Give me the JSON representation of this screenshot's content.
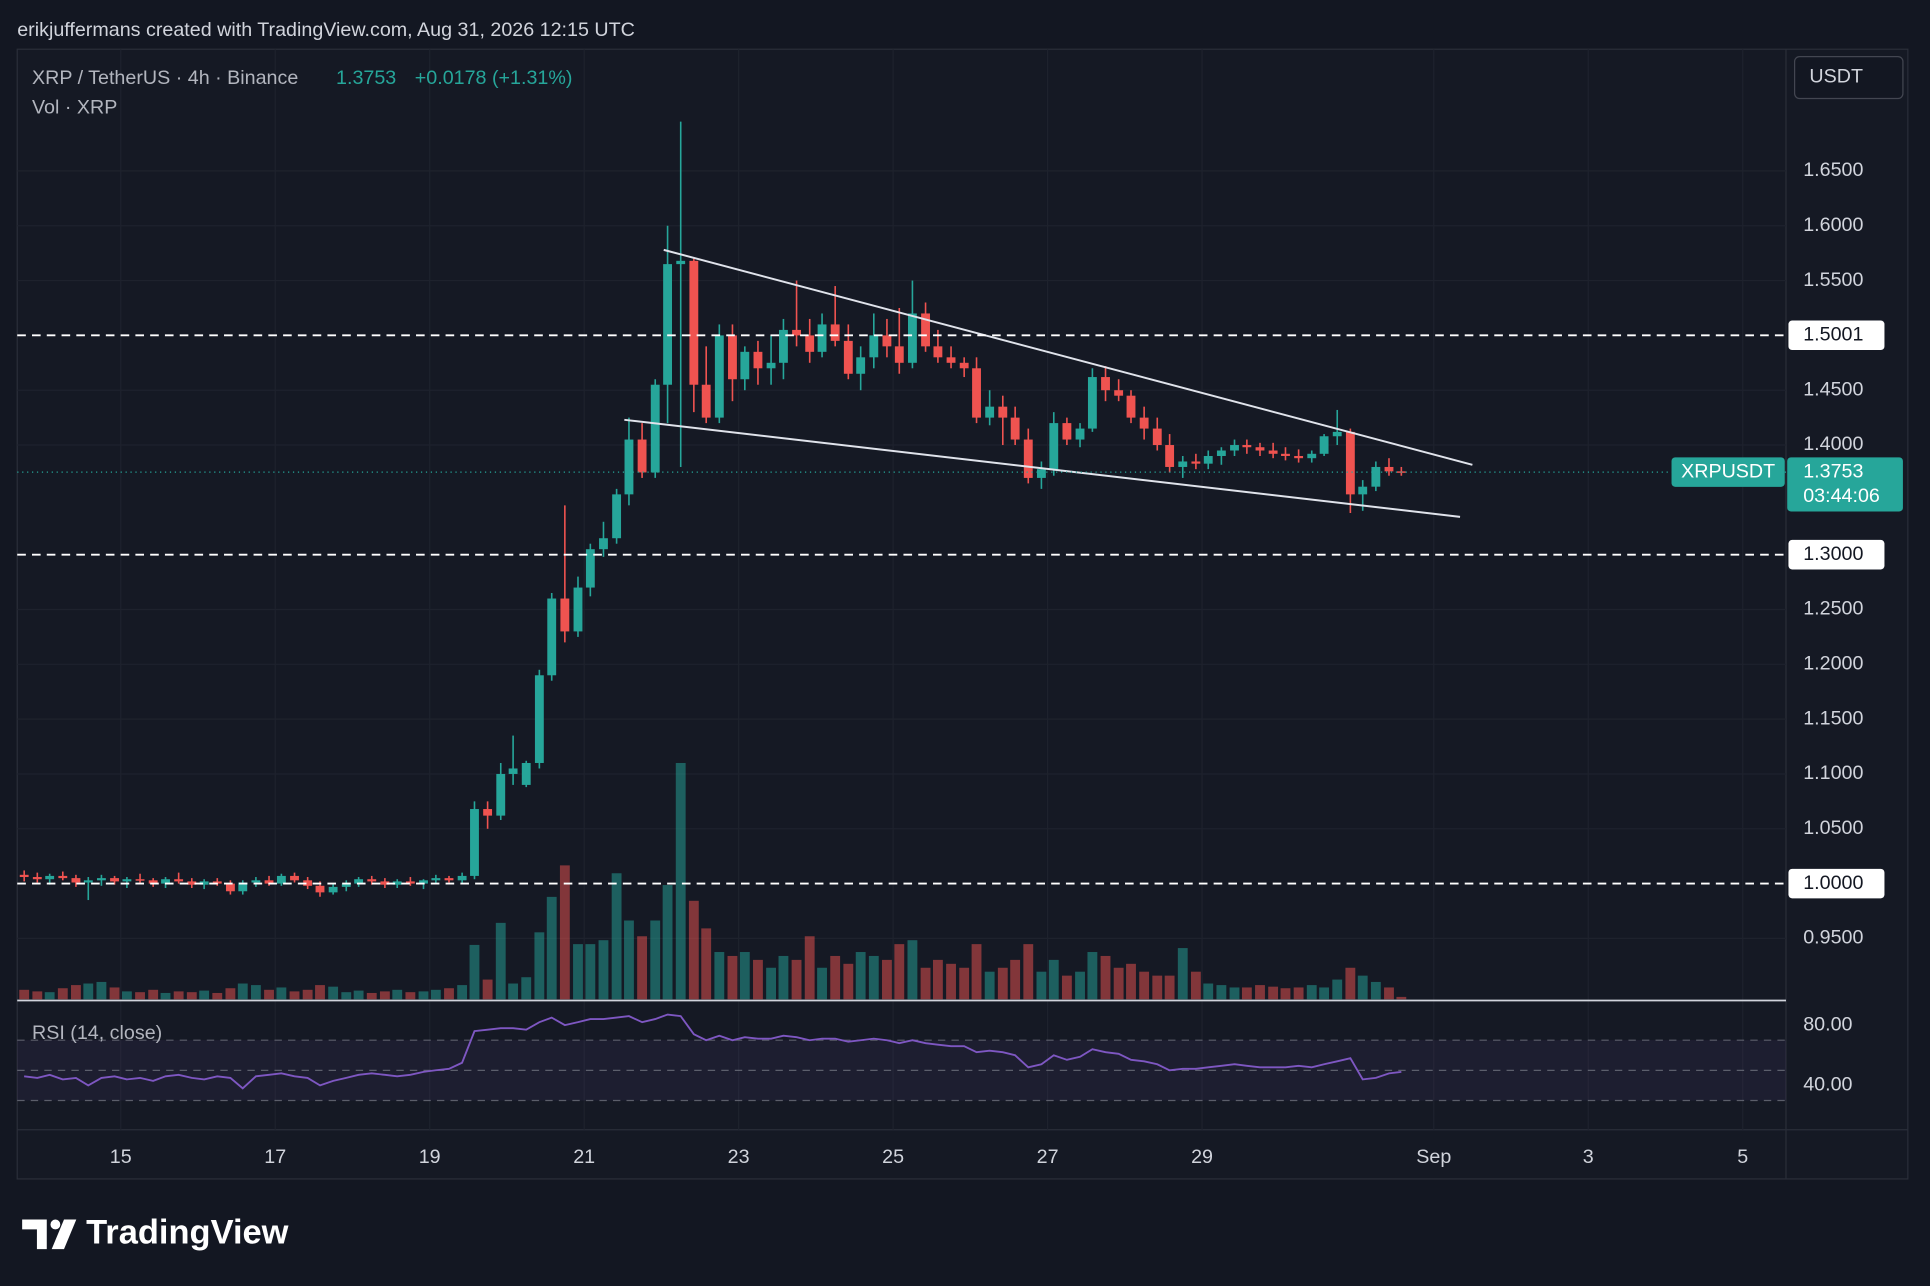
{
  "chart_data": {
    "type": "candlestick",
    "attribution": "erikjuffermans created with TradingView.com, Aug 31, 2026 12:15 UTC",
    "symbol": "XRP / TetherUS · 4h · Binance",
    "last": 1.3753,
    "change": "+0.0178 (+1.31%)",
    "volume_label": "Vol · XRP",
    "rsi_label": "RSI (14, close)",
    "currency": "USDT",
    "logo": "TradingView",
    "up_color": "#26a69a",
    "down_color": "#ef5350",
    "rsi_color": "#7e57c2",
    "grid": true,
    "xlim": [
      13.66,
      36.56
    ],
    "xticks": [
      15,
      17,
      19,
      21,
      23,
      25,
      27,
      29,
      {
        "value": 32,
        "label": "Sep"
      },
      {
        "value": 34,
        "label": "3"
      },
      {
        "value": 36,
        "label": "5"
      }
    ],
    "ylim": [
      0.8945,
      1.761
    ],
    "yticks": [
      {
        "value": 0.95,
        "label": "0.9500"
      },
      {
        "value": 1.05,
        "label": "1.0500"
      },
      {
        "value": 1.1,
        "label": "1.1000"
      },
      {
        "value": 1.15,
        "label": "1.1500"
      },
      {
        "value": 1.2,
        "label": "1.2000"
      },
      {
        "value": 1.25,
        "label": "1.2500"
      },
      {
        "value": 1.4,
        "label": "1.4000"
      },
      {
        "value": 1.45,
        "label": "1.4500"
      },
      {
        "value": 1.55,
        "label": "1.5500"
      },
      {
        "value": 1.6,
        "label": "1.6000"
      },
      {
        "value": 1.65,
        "label": "1.6500"
      }
    ],
    "rsi_lim": [
      10.6,
      94.7
    ],
    "rsi_ticks": [
      {
        "value": 80,
        "label": "80.00"
      },
      {
        "value": 40,
        "label": "40.00"
      }
    ],
    "rsi_bands": [
      70,
      50,
      30
    ],
    "levels": [
      1.5001,
      {
        "value": 1.3,
        "label": "1.3000"
      },
      {
        "value": 1,
        "label": "1.0000"
      }
    ],
    "price_marker": {
      "name": "XRPUSDT",
      "value": 1.3753,
      "countdown": "03:44:06"
    },
    "trendlines": [
      {
        "x": [
          22.03,
          32.5
        ],
        "y": [
          1.578,
          1.382
        ]
      },
      {
        "x": [
          21.52,
          32.34
        ],
        "y": [
          1.423,
          1.3345
        ]
      }
    ],
    "x": [
      13.75,
      13.92,
      14.08,
      14.25,
      14.42,
      14.58,
      14.75,
      14.92,
      15.08,
      15.25,
      15.42,
      15.58,
      15.75,
      15.92,
      16.08,
      16.25,
      16.42,
      16.58,
      16.75,
      16.92,
      17.08,
      17.25,
      17.42,
      17.58,
      17.75,
      17.92,
      18.08,
      18.25,
      18.42,
      18.58,
      18.75,
      18.92,
      19.08,
      19.25,
      19.42,
      19.58,
      19.75,
      19.92,
      20.08,
      20.25,
      20.42,
      20.58,
      20.75,
      20.92,
      21.08,
      21.25,
      21.42,
      21.58,
      21.75,
      21.92,
      22.08,
      22.25,
      22.42,
      22.58,
      22.75,
      22.92,
      23.08,
      23.25,
      23.42,
      23.58,
      23.75,
      23.92,
      24.08,
      24.25,
      24.42,
      24.58,
      24.75,
      24.92,
      25.08,
      25.25,
      25.42,
      25.58,
      25.75,
      25.92,
      26.08,
      26.25,
      26.42,
      26.58,
      26.75,
      26.92,
      27.08,
      27.25,
      27.42,
      27.58,
      27.75,
      27.92,
      28.08,
      28.25,
      28.42,
      28.58,
      28.75,
      28.92,
      29.08,
      29.25,
      29.42,
      29.58,
      29.75,
      29.92,
      30.08,
      30.25,
      30.42,
      30.58,
      30.75,
      30.92,
      31.08,
      31.25,
      31.42,
      31.58
    ],
    "ohlc": [
      [
        1.008,
        1.012,
        1.002,
        1.006
      ],
      [
        1.006,
        1.01,
        1.001,
        1.004
      ],
      [
        1.004,
        1.009,
        0.999,
        1.007
      ],
      [
        1.007,
        1.011,
        1.003,
        1.005
      ],
      [
        1.005,
        1.008,
        0.997,
        1.001
      ],
      [
        1.001,
        1.006,
        0.985,
        1.003
      ],
      [
        1.003,
        1.008,
        0.998,
        1.005
      ],
      [
        1.005,
        1.007,
        0.999,
        1.002
      ],
      [
        1.002,
        1.006,
        0.996,
        1.004
      ],
      [
        1.004,
        1.009,
        1.0,
        1.003
      ],
      [
        1.003,
        1.005,
        0.997,
        1.0
      ],
      [
        1.0,
        1.006,
        0.996,
        1.004
      ],
      [
        1.004,
        1.01,
        1.0,
        1.002
      ],
      [
        1.002,
        1.005,
        0.996,
        0.999
      ],
      [
        0.999,
        1.004,
        0.995,
        1.002
      ],
      [
        1.002,
        1.005,
        0.998,
        1.0
      ],
      [
        1.0,
        1.003,
        0.99,
        0.993
      ],
      [
        0.993,
        1.003,
        0.99,
        1.001
      ],
      [
        1.001,
        1.006,
        0.997,
        1.003
      ],
      [
        1.003,
        1.007,
        0.998,
        1.0
      ],
      [
        1.0,
        1.009,
        0.998,
        1.007
      ],
      [
        1.007,
        1.01,
        1.001,
        1.003
      ],
      [
        1.003,
        1.006,
        0.995,
        0.998
      ],
      [
        0.998,
        1.002,
        0.988,
        0.992
      ],
      [
        0.992,
        1.0,
        0.99,
        0.997
      ],
      [
        0.997,
        1.003,
        0.993,
        1.0
      ],
      [
        1.0,
        1.006,
        0.997,
        1.004
      ],
      [
        1.004,
        1.007,
        0.999,
        1.002
      ],
      [
        1.002,
        1.005,
        0.996,
        0.999
      ],
      [
        0.999,
        1.004,
        0.996,
        1.002
      ],
      [
        1.002,
        1.006,
        0.998,
        1.0
      ],
      [
        1.0,
        1.004,
        0.995,
        1.003
      ],
      [
        1.003,
        1.008,
        1.0,
        1.005
      ],
      [
        1.005,
        1.007,
        1.001,
        1.003
      ],
      [
        1.003,
        1.01,
        1.0,
        1.007
      ],
      [
        1.007,
        1.075,
        1.004,
        1.068
      ],
      [
        1.068,
        1.075,
        1.05,
        1.062
      ],
      [
        1.062,
        1.11,
        1.058,
        1.1
      ],
      [
        1.1,
        1.135,
        1.09,
        1.105
      ],
      [
        1.09,
        1.112,
        1.088,
        1.11
      ],
      [
        1.11,
        1.195,
        1.105,
        1.19
      ],
      [
        1.19,
        1.265,
        1.185,
        1.26
      ],
      [
        1.26,
        1.345,
        1.22,
        1.23
      ],
      [
        1.23,
        1.28,
        1.225,
        1.27
      ],
      [
        1.27,
        1.31,
        1.262,
        1.305
      ],
      [
        1.305,
        1.33,
        1.298,
        1.315
      ],
      [
        1.315,
        1.36,
        1.31,
        1.355
      ],
      [
        1.355,
        1.425,
        1.345,
        1.405
      ],
      [
        1.405,
        1.42,
        1.37,
        1.375
      ],
      [
        1.375,
        1.46,
        1.37,
        1.455
      ],
      [
        1.455,
        1.6,
        1.42,
        1.565
      ],
      [
        1.565,
        1.695,
        1.38,
        1.568
      ],
      [
        1.568,
        1.57,
        1.43,
        1.455
      ],
      [
        1.455,
        1.49,
        1.42,
        1.425
      ],
      [
        1.425,
        1.51,
        1.42,
        1.5
      ],
      [
        1.5,
        1.51,
        1.44,
        1.46
      ],
      [
        1.46,
        1.49,
        1.45,
        1.485
      ],
      [
        1.485,
        1.495,
        1.455,
        1.47
      ],
      [
        1.47,
        1.5,
        1.455,
        1.475
      ],
      [
        1.475,
        1.515,
        1.46,
        1.505
      ],
      [
        1.505,
        1.55,
        1.49,
        1.5
      ],
      [
        1.5,
        1.515,
        1.475,
        1.485
      ],
      [
        1.485,
        1.52,
        1.48,
        1.51
      ],
      [
        1.51,
        1.545,
        1.49,
        1.495
      ],
      [
        1.495,
        1.51,
        1.46,
        1.465
      ],
      [
        1.465,
        1.49,
        1.45,
        1.48
      ],
      [
        1.48,
        1.52,
        1.47,
        1.5
      ],
      [
        1.5,
        1.515,
        1.48,
        1.49
      ],
      [
        1.49,
        1.525,
        1.465,
        1.475
      ],
      [
        1.475,
        1.55,
        1.47,
        1.52
      ],
      [
        1.52,
        1.53,
        1.485,
        1.49
      ],
      [
        1.49,
        1.505,
        1.475,
        1.48
      ],
      [
        1.48,
        1.49,
        1.47,
        1.475
      ],
      [
        1.475,
        1.48,
        1.462,
        1.47
      ],
      [
        1.47,
        1.48,
        1.42,
        1.425
      ],
      [
        1.425,
        1.45,
        1.418,
        1.435
      ],
      [
        1.435,
        1.445,
        1.4,
        1.425
      ],
      [
        1.425,
        1.435,
        1.4,
        1.405
      ],
      [
        1.405,
        1.415,
        1.365,
        1.37
      ],
      [
        1.37,
        1.385,
        1.36,
        1.378
      ],
      [
        1.378,
        1.43,
        1.372,
        1.42
      ],
      [
        1.42,
        1.425,
        1.4,
        1.405
      ],
      [
        1.405,
        1.42,
        1.398,
        1.415
      ],
      [
        1.415,
        1.47,
        1.412,
        1.462
      ],
      [
        1.462,
        1.472,
        1.44,
        1.45
      ],
      [
        1.45,
        1.46,
        1.44,
        1.445
      ],
      [
        1.445,
        1.45,
        1.42,
        1.425
      ],
      [
        1.425,
        1.435,
        1.405,
        1.415
      ],
      [
        1.415,
        1.425,
        1.395,
        1.4
      ],
      [
        1.4,
        1.41,
        1.375,
        1.38
      ],
      [
        1.38,
        1.39,
        1.37,
        1.385
      ],
      [
        1.385,
        1.392,
        1.378,
        1.383
      ],
      [
        1.383,
        1.395,
        1.378,
        1.39
      ],
      [
        1.39,
        1.398,
        1.382,
        1.395
      ],
      [
        1.395,
        1.405,
        1.39,
        1.4
      ],
      [
        1.4,
        1.405,
        1.392,
        1.398
      ],
      [
        1.398,
        1.402,
        1.39,
        1.395
      ],
      [
        1.395,
        1.402,
        1.388,
        1.392
      ],
      [
        1.392,
        1.398,
        1.386,
        1.39
      ],
      [
        1.39,
        1.396,
        1.384,
        1.388
      ],
      [
        1.388,
        1.395,
        1.384,
        1.392
      ],
      [
        1.392,
        1.41,
        1.39,
        1.408
      ],
      [
        1.408,
        1.432,
        1.4,
        1.412
      ],
      [
        1.412,
        1.415,
        1.338,
        1.355
      ],
      [
        1.355,
        1.368,
        1.34,
        1.362
      ],
      [
        1.362,
        1.385,
        1.358,
        1.38
      ],
      [
        1.38,
        1.388,
        1.372,
        1.376
      ],
      [
        1.376,
        1.38,
        1.372,
        1.3753
      ]
    ],
    "volume": [
      12,
      10,
      9,
      14,
      18,
      20,
      22,
      15,
      10,
      9,
      12,
      8,
      10,
      9,
      11,
      8,
      14,
      20,
      18,
      12,
      15,
      10,
      12,
      18,
      16,
      9,
      11,
      8,
      10,
      12,
      9,
      10,
      12,
      14,
      18,
      69,
      25,
      97,
      20,
      28,
      85,
      130,
      170,
      70,
      70,
      75,
      160,
      100,
      80,
      100,
      145,
      300,
      125,
      90,
      60,
      55,
      60,
      50,
      40,
      55,
      50,
      80,
      40,
      55,
      45,
      60,
      55,
      50,
      70,
      75,
      40,
      50,
      45,
      40,
      70,
      35,
      40,
      50,
      70,
      35,
      50,
      30,
      35,
      60,
      55,
      40,
      45,
      35,
      30,
      30,
      65,
      35,
      20,
      18,
      15,
      15,
      18,
      16,
      14,
      15,
      18,
      15,
      25,
      40,
      30,
      22,
      15,
      3
    ],
    "rsi": [
      46,
      45,
      47,
      44,
      45,
      40,
      45,
      46,
      44,
      45,
      43,
      46,
      47,
      45,
      44,
      46,
      45,
      38,
      46,
      47,
      48,
      46,
      45,
      40,
      43,
      45,
      47,
      48,
      47,
      46,
      47,
      49,
      50,
      51,
      55,
      76,
      77,
      78,
      78,
      77,
      82,
      85,
      80,
      82,
      84,
      84,
      85,
      86,
      82,
      84,
      87,
      86,
      74,
      70,
      73,
      70,
      72,
      71,
      71,
      73,
      72,
      70,
      71,
      71,
      69,
      70,
      71,
      70,
      68,
      70,
      68,
      67,
      66,
      66,
      62,
      63,
      62,
      60,
      52,
      54,
      60,
      57,
      59,
      64,
      62,
      61,
      57,
      56,
      54,
      50,
      51,
      51,
      52,
      53,
      54,
      53,
      52,
      52,
      52,
      53,
      52,
      54,
      56,
      58,
      44,
      45,
      48,
      49
    ]
  }
}
